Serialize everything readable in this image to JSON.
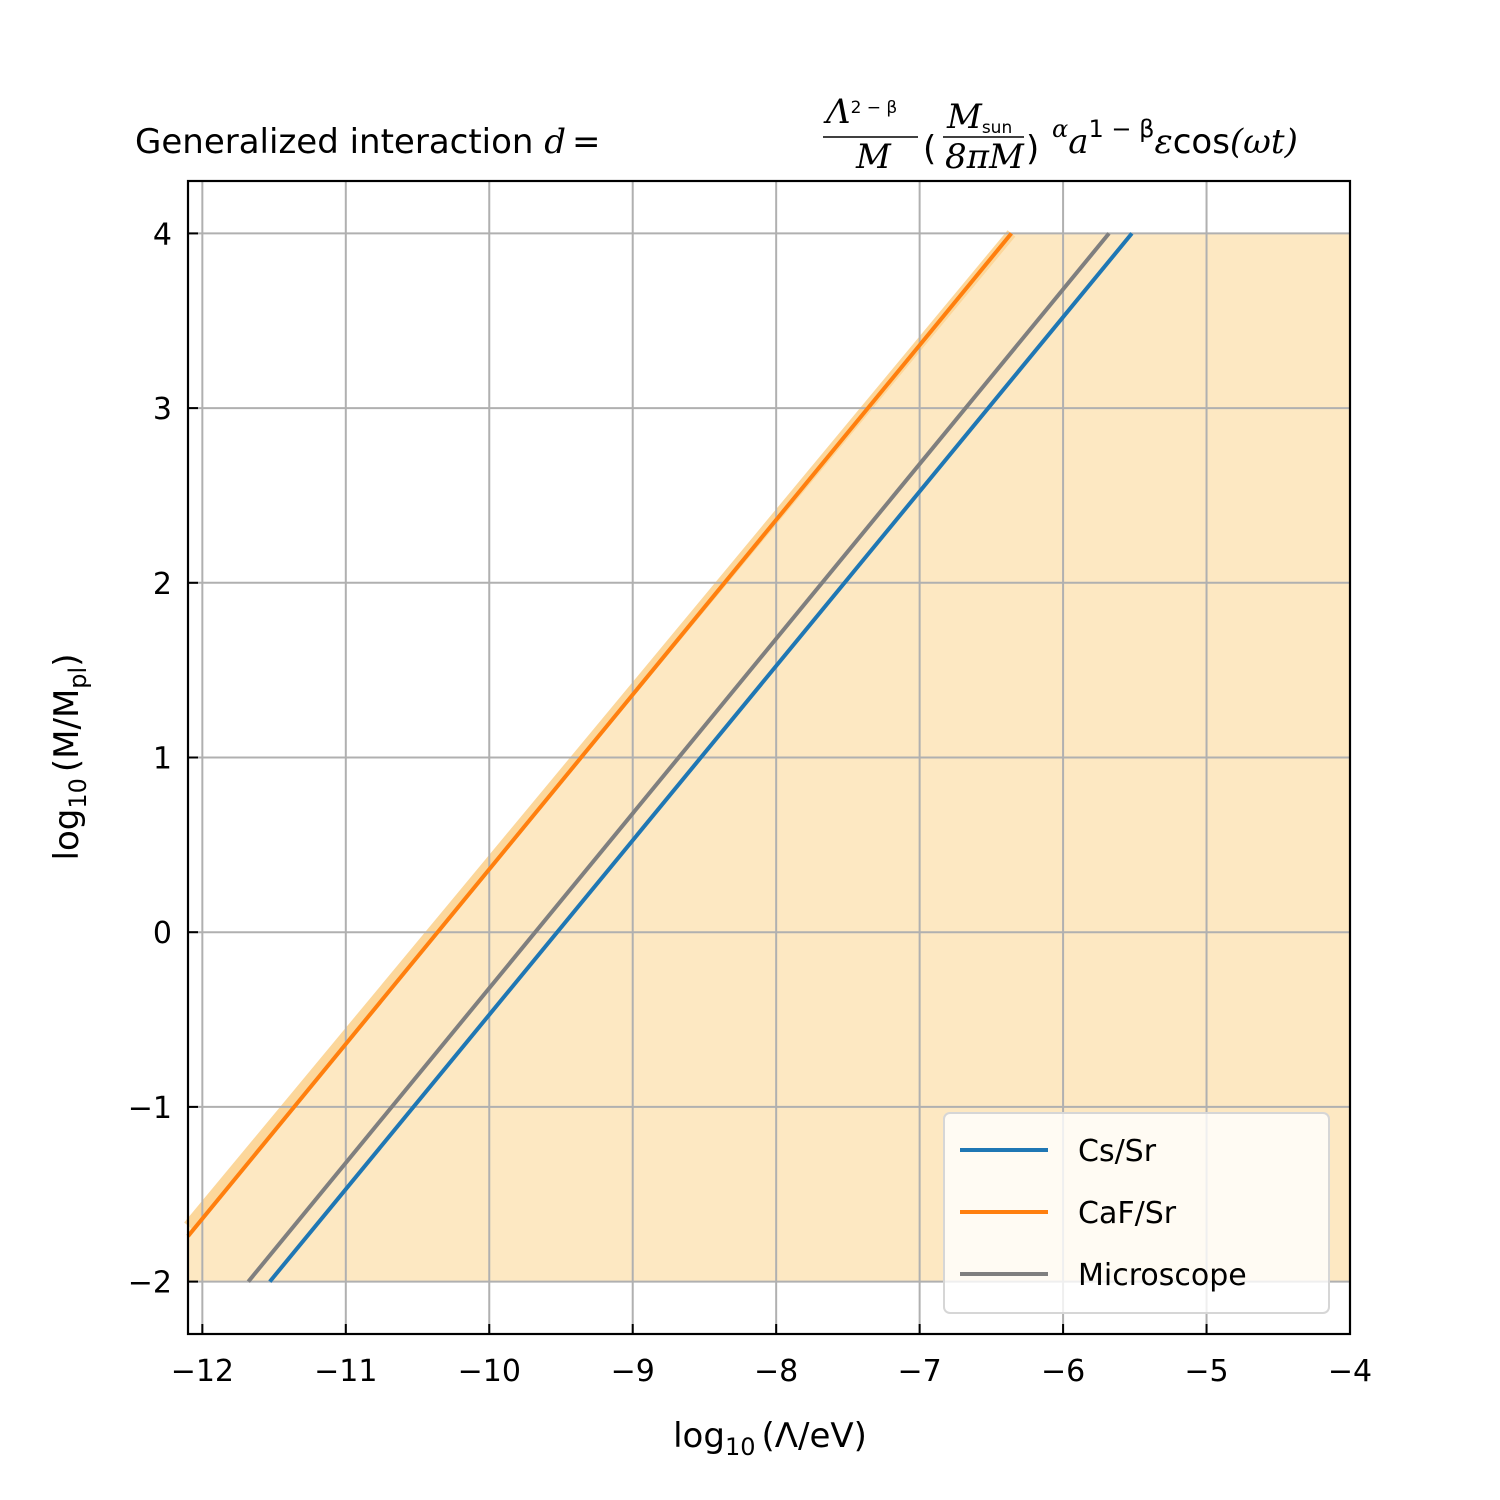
{
  "chart_data": {
    "type": "line",
    "title": {
      "prefix": "Generalized interaction ",
      "formula": "d = (Λ^(2−β)/M)(M_sun/(8πM))^α a^(1−β) ε cos(ωt)",
      "d": "d",
      "eq": "=",
      "Lambda": "Λ",
      "exp_lambda": "2 − β",
      "M": "M",
      "Msun": "M",
      "sun": "sun",
      "eight_pi_M": "8πM",
      "alpha": "α",
      "a": "a",
      "exp_a": "1 − β",
      "eps": "ε",
      "cos": "cos",
      "omega_t": "(ωt)"
    },
    "xlabel": {
      "log": "log",
      "sub": "10",
      "rest": "(Λ/eV)"
    },
    "ylabel": {
      "log": "log",
      "sub": "10",
      "rest_open": "(M/M",
      "sub_pl": "pl",
      "rest_close": ")"
    },
    "xlim": [
      -12.1,
      -4
    ],
    "ylim": [
      -2.3,
      4.3
    ],
    "xticks": [
      -12,
      -11,
      -10,
      -9,
      -8,
      -7,
      -6,
      -5,
      -4
    ],
    "yticks": [
      -2,
      -1,
      0,
      1,
      2,
      3,
      4
    ],
    "xtick_labels": [
      "−12",
      "−11",
      "−10",
      "−9",
      "−8",
      "−7",
      "−6",
      "−5",
      "−4"
    ],
    "ytick_labels": [
      "−2",
      "−1",
      "0",
      "1",
      "2",
      "3",
      "4"
    ],
    "grid": true,
    "legend_position": "lower-right",
    "shaded_region": {
      "color": "#fde8c2",
      "edge_color": "#fcd79b",
      "boundary": [
        [
          -12.1,
          -1.68
        ],
        [
          -6.36,
          4.0
        ],
        [
          -4,
          4.0
        ],
        [
          -4,
          -2.0
        ],
        [
          -12.1,
          -2.0
        ]
      ]
    },
    "series": [
      {
        "name": "Cs/Sr",
        "color": "#1f77b4",
        "x": [
          -11.53,
          -5.52
        ],
        "y": [
          -2.0,
          4.0
        ]
      },
      {
        "name": "CaF/Sr",
        "color": "#ff7f0e",
        "x": [
          -12.1,
          -6.36
        ],
        "y": [
          -1.74,
          4.0
        ]
      },
      {
        "name": "Microscope",
        "color": "#7f7f7f",
        "x": [
          -11.68,
          -5.68
        ],
        "y": [
          -2.0,
          4.0
        ]
      }
    ]
  }
}
